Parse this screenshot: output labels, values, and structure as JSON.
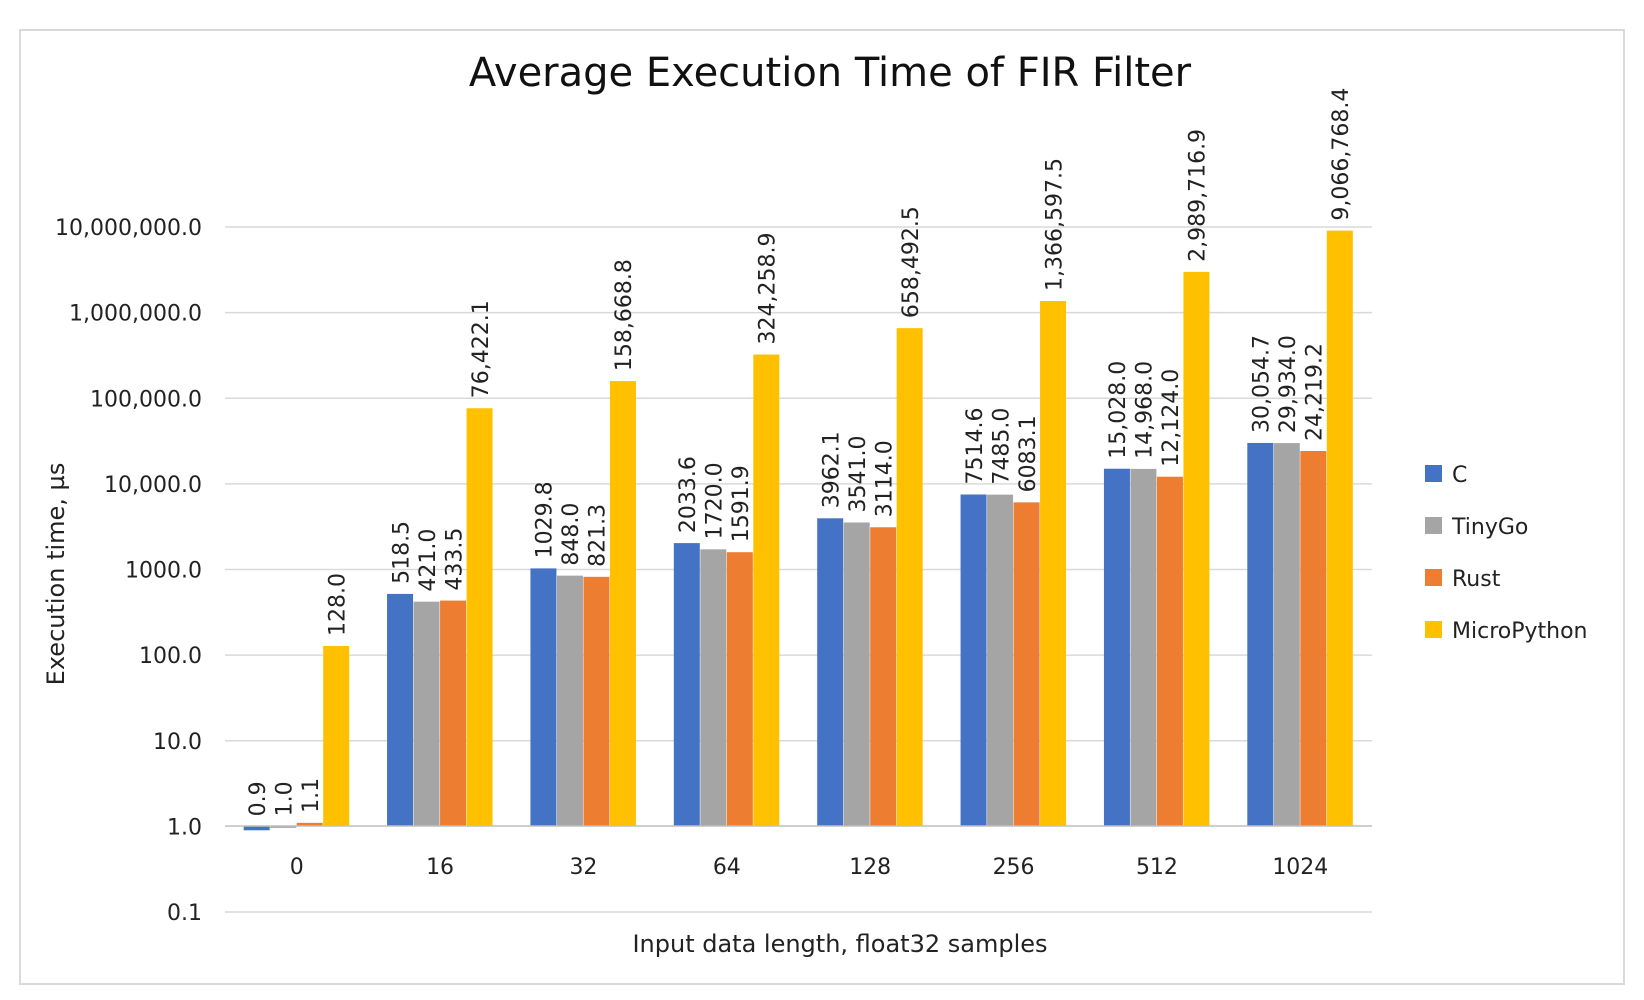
{
  "chart_data": {
    "type": "bar",
    "title": "Average Execution Time of FIR Filter",
    "xlabel": "Input data length, float32 samples",
    "ylabel": "Execution time, µs",
    "y_scale": "log",
    "ylim": [
      0.1,
      10000000
    ],
    "grid": true,
    "legend_position": "right",
    "categories": [
      "0",
      "16",
      "32",
      "64",
      "128",
      "256",
      "512",
      "1024"
    ],
    "y_tick_labels": [
      "0.1",
      "1.0",
      "10.0",
      "100.0",
      "1000.0",
      "10,000.0",
      "100,000.0",
      "1,000,000.0",
      "10,000,000.0"
    ],
    "series": [
      {
        "name": "C",
        "color": "#4472c4",
        "values": [
          0.9,
          518.5,
          1029.8,
          2033.6,
          3962.1,
          7514.6,
          15028.0,
          30054.7
        ],
        "labels": [
          "0.9",
          "518.5",
          "1029.8",
          "2033.6",
          "3962.1",
          "7514.6",
          "15,028.0",
          "30,054.7"
        ]
      },
      {
        "name": "TinyGo",
        "color": "#a5a5a5",
        "values": [
          1.0,
          421.0,
          848.0,
          1720.0,
          3541.0,
          7485.0,
          14968.0,
          29934.0
        ],
        "labels": [
          "1.0",
          "421.0",
          "848.0",
          "1720.0",
          "3541.0",
          "7485.0",
          "14,968.0",
          "29,934.0"
        ]
      },
      {
        "name": "Rust",
        "color": "#ed7d31",
        "values": [
          1.1,
          433.5,
          821.3,
          1591.9,
          3114.0,
          6083.1,
          12124.0,
          24219.2
        ],
        "labels": [
          "1.1",
          "433.5",
          "821.3",
          "1591.9",
          "3114.0",
          "6083.1",
          "12,124.0",
          "24,219.2"
        ]
      },
      {
        "name": "MicroPython",
        "color": "#ffc000",
        "values": [
          128.0,
          76422.1,
          158668.8,
          324258.9,
          658492.5,
          1366597.5,
          2989716.9,
          9066768.4
        ],
        "labels": [
          "128.0",
          "76,422.1",
          "158,668.8",
          "324,258.9",
          "658,492.5",
          "1,366,597.5",
          "2,989,716.9",
          "9,066,768.4"
        ]
      }
    ]
  }
}
